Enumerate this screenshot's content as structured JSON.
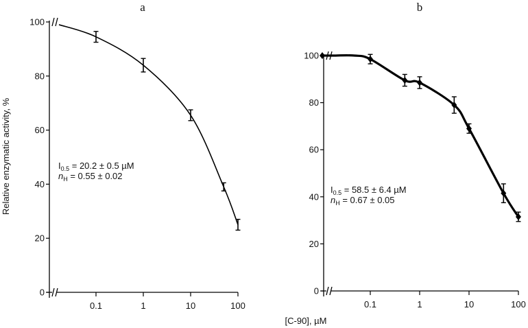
{
  "ylabel": "Relative enzymatic activity, %",
  "xlabel": "[C-90], µM",
  "chart_data": [
    {
      "type": "line",
      "panel_label": "a",
      "x_scale": "log",
      "x_ticks": [
        0.1,
        1,
        10,
        100
      ],
      "x_tick_labels": [
        "0.1",
        "1",
        "10",
        "100"
      ],
      "y_ticks": [
        0,
        20,
        40,
        60,
        80,
        100
      ],
      "y_tick_labels": [
        "0",
        "20",
        "40",
        "60",
        "80",
        "100"
      ],
      "ylim": [
        0,
        100
      ],
      "axis_break": true,
      "markers": false,
      "points": [
        {
          "x": 0.1,
          "y": 94.5,
          "err": 2
        },
        {
          "x": 1,
          "y": 84,
          "err": 2.5
        },
        {
          "x": 10,
          "y": 65.5,
          "err": 2
        },
        {
          "x": 50,
          "y": 39,
          "err": 1.5
        },
        {
          "x": 100,
          "y": 25,
          "err": 2
        }
      ],
      "control_y": 99,
      "annotation": {
        "i_label": "I",
        "i_sub": "0.5",
        "i_value": " = 20.2 ± 0.5 µM",
        "n_label": "n",
        "n_sub": "H",
        "n_value": " = 0.55 ± 0.02"
      }
    },
    {
      "type": "line",
      "panel_label": "b",
      "x_scale": "log",
      "x_ticks": [
        0.1,
        1,
        10,
        100
      ],
      "x_tick_labels": [
        "0.1",
        "1",
        "10",
        "100"
      ],
      "y_ticks": [
        0,
        20,
        40,
        60,
        80,
        100
      ],
      "y_tick_labels": [
        "0",
        "20",
        "40",
        "60",
        "80",
        "100"
      ],
      "ylim": [
        0,
        100
      ],
      "axis_break": true,
      "markers": true,
      "points": [
        {
          "x": 0.1,
          "y": 98.5,
          "err": 2
        },
        {
          "x": 0.5,
          "y": 89.5,
          "err": 2.5
        },
        {
          "x": 1,
          "y": 88.5,
          "err": 2.5
        },
        {
          "x": 5,
          "y": 79,
          "err": 3.5
        },
        {
          "x": 10,
          "y": 69,
          "err": 2
        },
        {
          "x": 50,
          "y": 41.5,
          "err": 4
        },
        {
          "x": 100,
          "y": 31.5,
          "err": 2
        }
      ],
      "control_y": 100,
      "annotation": {
        "i_label": "I",
        "i_sub": "0.5",
        "i_value": " = 58.5 ± 6.4 µM",
        "n_label": "n",
        "n_sub": "H",
        "n_value": " = 0.67 ± 0.05"
      }
    }
  ]
}
